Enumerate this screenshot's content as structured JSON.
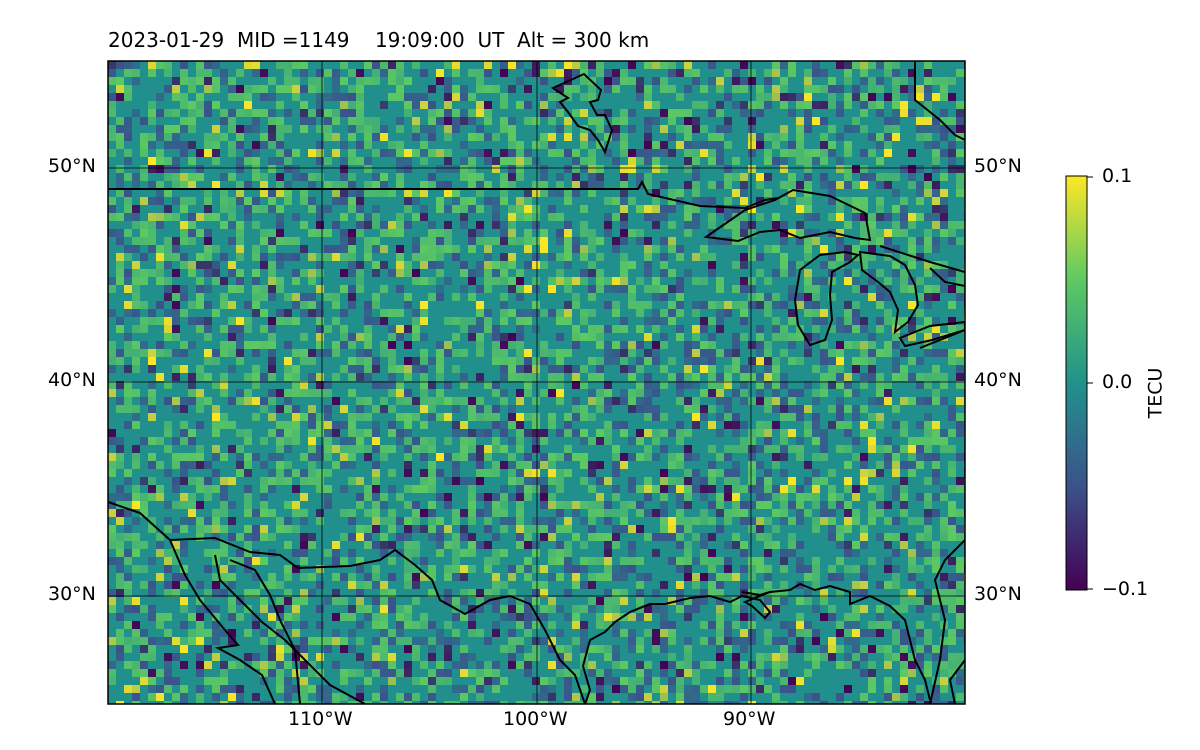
{
  "title": "2023-01-29  MID =1149    19:09:00  UT  Alt = 300 km",
  "map": {
    "lon_range": [
      -120,
      -80
    ],
    "lat_range": [
      25,
      55
    ],
    "gridlines": true,
    "lat_ticks": [
      "50°N",
      "40°N",
      "30°N"
    ],
    "lon_ticks": [
      "110°W",
      "100°W",
      "90°W"
    ],
    "colormap": "viridis",
    "features": [
      "coastlines",
      "country borders",
      "Great Lakes"
    ]
  },
  "colorbar": {
    "label": "TECU",
    "ticks": [
      "0.1",
      "0.0",
      "−0.1"
    ],
    "vmin": -0.1,
    "vmax": 0.1,
    "colors": [
      "#440154",
      "#3b528b",
      "#21918c",
      "#5ec962",
      "#fde725"
    ]
  }
}
